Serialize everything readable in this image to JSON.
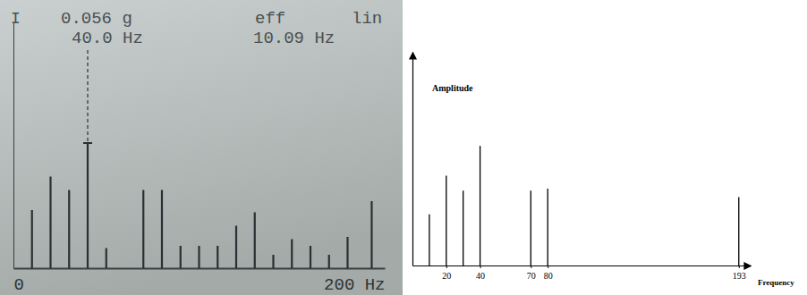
{
  "chart_data": [
    {
      "type": "stem",
      "annotations": [
        "I",
        "0.056 g",
        "eff",
        "lin",
        "40.0 Hz",
        "10.09 Hz"
      ],
      "x": [
        10,
        20,
        30,
        40,
        50,
        70,
        80,
        90,
        100,
        110,
        120,
        130,
        140,
        150,
        160,
        170,
        180,
        193
      ],
      "values": [
        0.026,
        0.041,
        0.035,
        0.056,
        0.009,
        0.035,
        0.035,
        0.01,
        0.01,
        0.01,
        0.019,
        0.025,
        0.006,
        0.013,
        0.01,
        0.006,
        0.014,
        0.03
      ],
      "xlim": [
        0,
        200
      ],
      "xticks": [
        {
          "value": 0,
          "label": "0"
        },
        {
          "value": 200,
          "label": "200 Hz"
        }
      ],
      "ylim": [
        0,
        0.11
      ],
      "tick_labels": "x",
      "cursor_x": 40,
      "color": "#2b2f33"
    },
    {
      "type": "stem",
      "x_label": "Frequency",
      "y_label": "Amplitude",
      "x": [
        10,
        20,
        30,
        40,
        70,
        80,
        193
      ],
      "values": [
        0.024,
        0.042,
        0.035,
        0.056,
        0.035,
        0.036,
        0.032
      ],
      "xlim": [
        0,
        200
      ],
      "xticks": [
        20,
        40,
        70,
        80,
        193
      ],
      "ylim": [
        0,
        0.1
      ],
      "tick_labels": "x",
      "color": "#000000"
    }
  ]
}
